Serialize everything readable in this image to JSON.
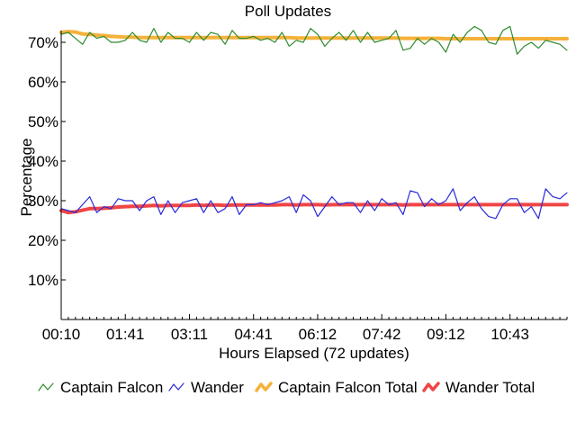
{
  "chart_data": {
    "type": "line",
    "title": "Poll Updates",
    "xlabel": "Hours Elapsed (72 updates)",
    "ylabel": "Percentage",
    "x_tick_labels": [
      "00:10",
      "01:41",
      "03:11",
      "04:41",
      "06:12",
      "07:42",
      "09:12",
      "10:43"
    ],
    "y_tick_labels": [
      "10%",
      "20%",
      "30%",
      "40%",
      "50%",
      "60%",
      "70%"
    ],
    "y_tick_values": [
      10,
      20,
      30,
      40,
      50,
      60,
      70
    ],
    "ylim": [
      0,
      73.5
    ],
    "grid": false,
    "legend_position": "bottom",
    "num_points": 72,
    "series": [
      {
        "name": "Captain Falcon",
        "color": "#2e8b2e",
        "values": [
          72.0,
          72.5,
          71.0,
          69.5,
          72.5,
          71.0,
          71.5,
          70.0,
          70.0,
          70.5,
          72.5,
          70.5,
          70.0,
          73.5,
          70.0,
          72.5,
          71.0,
          71.0,
          70.0,
          72.5,
          70.5,
          72.5,
          72.0,
          69.5,
          73.0,
          71.0,
          71.0,
          71.5,
          70.5,
          71.0,
          70.0,
          72.5,
          69.0,
          70.5,
          70.0,
          73.5,
          72.0,
          69.0,
          71.0,
          72.5,
          70.5,
          73.0,
          70.0,
          72.5,
          70.0,
          70.5,
          71.0,
          73.0,
          68.0,
          68.5,
          71.0,
          69.5,
          71.0,
          70.0,
          67.5,
          72.0,
          70.0,
          72.5,
          74.0,
          73.0,
          70.0,
          69.5,
          73.0,
          74.0,
          67.0,
          69.0,
          70.0,
          68.5,
          70.5,
          70.0,
          69.5,
          68.0
        ]
      },
      {
        "name": "Wander",
        "color": "#2a2ad8",
        "values": [
          28.0,
          27.5,
          27.0,
          29.0,
          31.0,
          27.0,
          28.5,
          28.0,
          30.5,
          30.0,
          30.0,
          27.5,
          30.0,
          31.0,
          26.5,
          30.0,
          27.0,
          29.5,
          30.0,
          30.5,
          27.0,
          30.0,
          27.0,
          28.0,
          31.0,
          26.5,
          29.0,
          29.0,
          29.5,
          29.0,
          29.5,
          30.0,
          31.0,
          27.0,
          31.5,
          30.0,
          26.0,
          28.5,
          31.0,
          29.0,
          29.5,
          29.5,
          27.0,
          30.0,
          27.5,
          30.5,
          29.0,
          29.5,
          26.5,
          32.5,
          32.0,
          28.5,
          30.5,
          29.0,
          30.0,
          33.0,
          27.5,
          29.5,
          31.0,
          28.0,
          26.0,
          25.5,
          29.0,
          30.5,
          30.5,
          27.0,
          28.5,
          25.5,
          33.0,
          31.0,
          30.5,
          32.0
        ]
      },
      {
        "name": "Captain Falcon Total",
        "color": "#f5b13a",
        "values": [
          72.5,
          72.7,
          72.6,
          72.1,
          72.0,
          71.8,
          71.7,
          71.5,
          71.4,
          71.3,
          71.3,
          71.2,
          71.2,
          71.2,
          71.2,
          71.2,
          71.2,
          71.2,
          71.2,
          71.2,
          71.2,
          71.2,
          71.2,
          71.2,
          71.2,
          71.2,
          71.2,
          71.2,
          71.2,
          71.2,
          71.2,
          71.2,
          71.2,
          71.1,
          71.1,
          71.1,
          71.1,
          71.1,
          71.1,
          71.1,
          71.1,
          71.1,
          71.1,
          71.1,
          71.1,
          71.1,
          71.1,
          71.1,
          71.0,
          71.0,
          71.0,
          71.0,
          71.0,
          71.0,
          70.9,
          70.9,
          70.9,
          70.9,
          70.9,
          70.9,
          70.9,
          70.9,
          70.9,
          70.9,
          70.9,
          70.9,
          70.9,
          70.9,
          70.9,
          70.9,
          70.9,
          70.9
        ]
      },
      {
        "name": "Wander Total",
        "color": "#f04545",
        "values": [
          27.5,
          27.0,
          27.2,
          27.6,
          28.0,
          28.0,
          28.1,
          28.2,
          28.4,
          28.5,
          28.6,
          28.6,
          28.7,
          28.8,
          28.7,
          28.8,
          28.8,
          28.8,
          28.8,
          28.9,
          28.8,
          28.9,
          28.9,
          28.8,
          28.9,
          28.9,
          28.9,
          28.9,
          28.9,
          28.9,
          28.9,
          29.0,
          29.0,
          28.9,
          29.0,
          29.0,
          29.0,
          28.9,
          29.0,
          29.0,
          29.0,
          29.0,
          29.0,
          29.0,
          29.0,
          29.0,
          29.0,
          29.0,
          28.9,
          29.0,
          29.0,
          29.0,
          29.0,
          29.0,
          29.0,
          29.0,
          29.0,
          29.0,
          29.0,
          29.0,
          29.0,
          29.0,
          29.0,
          29.0,
          29.0,
          29.0,
          29.0,
          29.0,
          29.0,
          29.0,
          29.0,
          29.0
        ]
      }
    ]
  }
}
